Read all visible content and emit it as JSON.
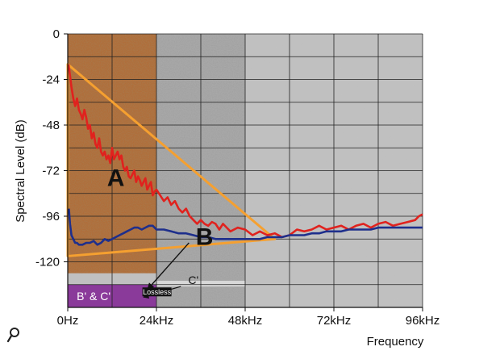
{
  "chart_data": {
    "type": "line",
    "xlabel": "Frequency",
    "ylabel": "Spectral Level (dB)",
    "xlim": [
      0,
      96
    ],
    "ylim": [
      -144,
      0
    ],
    "x_ticks": [
      {
        "value": 0,
        "label": "0Hz"
      },
      {
        "value": 24,
        "label": "24kHz"
      },
      {
        "value": 48,
        "label": "48kHz"
      },
      {
        "value": 72,
        "label": "72kHz"
      },
      {
        "value": 96,
        "label": "96kHz"
      }
    ],
    "y_ticks": [
      {
        "value": 0,
        "label": "0"
      },
      {
        "value": -24,
        "label": "-24"
      },
      {
        "value": -48,
        "label": "-48"
      },
      {
        "value": -72,
        "label": "-72"
      },
      {
        "value": -96,
        "label": "-96"
      },
      {
        "value": -120,
        "label": "-120"
      }
    ],
    "grid": true,
    "colors": {
      "plot_background": "#c0c0c0",
      "region_a": "#b06e3a",
      "region_mid": "#a8a8a8",
      "region_purple": "#8a3a9a",
      "triangle": "#f5a030",
      "red_series": "#e0221e",
      "blue_series": "#1e2f8c"
    },
    "regions": [
      {
        "name": "A",
        "x": [
          0,
          24
        ],
        "y": [
          -126,
          0
        ]
      },
      {
        "name": "B' & C'",
        "x": [
          0,
          24
        ],
        "y": [
          -144,
          -132
        ]
      },
      {
        "name": "C'",
        "x": [
          24,
          48
        ],
        "y": [
          -133,
          -130
        ]
      }
    ],
    "triangle": [
      [
        0,
        -16
      ],
      [
        56,
        -108
      ],
      [
        0,
        -117
      ]
    ],
    "series": [
      {
        "x": [
          0.2,
          0.6,
          1,
          1.5,
          2,
          2.5,
          3,
          3.5,
          4,
          4.5,
          5,
          5.5,
          6,
          6.5,
          7,
          7.5,
          8,
          8.5,
          9,
          9.5,
          10,
          10.5,
          11,
          11.5,
          12,
          12.5,
          13,
          13.5,
          14,
          14.5,
          15,
          15.5,
          16,
          16.5,
          17,
          17.5,
          18,
          18.5,
          19,
          19.5,
          20,
          20.5,
          21,
          21.5,
          22,
          22.5,
          23,
          23.5,
          24,
          25,
          26,
          27,
          28,
          29,
          30,
          31,
          32,
          33,
          34,
          35,
          36,
          37,
          38,
          39,
          40,
          41,
          42,
          44,
          46,
          48,
          50,
          52,
          54,
          56,
          58,
          60,
          62,
          64,
          66,
          68,
          70,
          72,
          74,
          76,
          78,
          80,
          82,
          84,
          86,
          88,
          90,
          92,
          94,
          95,
          96
        ],
        "values": [
          -16,
          -22,
          -28,
          -34,
          -38,
          -34,
          -40,
          -42,
          -45,
          -40,
          -44,
          -50,
          -48,
          -55,
          -52,
          -58,
          -60,
          -55,
          -62,
          -64,
          -62,
          -66,
          -64,
          -68,
          -60,
          -66,
          -64,
          -62,
          -66,
          -64,
          -70,
          -72,
          -70,
          -75,
          -76,
          -74,
          -72,
          -78,
          -75,
          -77,
          -80,
          -78,
          -76,
          -82,
          -80,
          -78,
          -85,
          -83,
          -82,
          -85,
          -88,
          -86,
          -90,
          -88,
          -92,
          -94,
          -92,
          -96,
          -98,
          -100,
          -98,
          -100,
          -101,
          -99,
          -100,
          -103,
          -100,
          -104,
          -102,
          -103,
          -106,
          -104,
          -106,
          -105,
          -107,
          -106,
          -103,
          -104,
          -103,
          -101,
          -103,
          -102,
          -101,
          -103,
          -101,
          -100,
          -102,
          -100,
          -99,
          -101,
          -100,
          -99,
          -98,
          -96,
          -95
        ]
      },
      {
        "x": [
          0.3,
          0.6,
          1,
          1.5,
          2,
          2.5,
          3,
          4,
          5,
          6,
          7,
          8,
          9,
          10,
          11,
          12,
          13,
          14,
          15,
          16,
          17,
          18,
          19,
          20,
          21,
          22,
          23,
          24,
          26,
          28,
          30,
          32,
          34,
          36,
          38,
          40,
          42,
          44,
          46,
          48,
          50,
          52,
          54,
          56,
          58,
          60,
          62,
          64,
          66,
          68,
          70,
          72,
          74,
          76,
          78,
          80,
          82,
          84,
          86,
          88,
          90,
          92,
          94,
          96
        ],
        "values": [
          -92,
          -100,
          -106,
          -108,
          -110,
          -110,
          -111,
          -111,
          -110,
          -110,
          -109,
          -111,
          -110,
          -108,
          -109,
          -108,
          -107,
          -106,
          -105,
          -104,
          -103,
          -102,
          -102,
          -103,
          -102,
          -101,
          -101,
          -103,
          -103,
          -104,
          -105,
          -105,
          -106,
          -107,
          -107,
          -108,
          -108,
          -108,
          -108,
          -108,
          -108,
          -108,
          -107,
          -107,
          -107,
          -106,
          -106,
          -106,
          -105,
          -105,
          -104,
          -104,
          -104,
          -103,
          -103,
          -103,
          -103,
          -102,
          -102,
          -102,
          -102,
          -102,
          -102,
          -102
        ]
      }
    ],
    "annotations": {
      "a": "A",
      "b": "B",
      "c_prime": "C'",
      "lossless": "Lossless",
      "b_and_c": "B' & C'"
    }
  }
}
